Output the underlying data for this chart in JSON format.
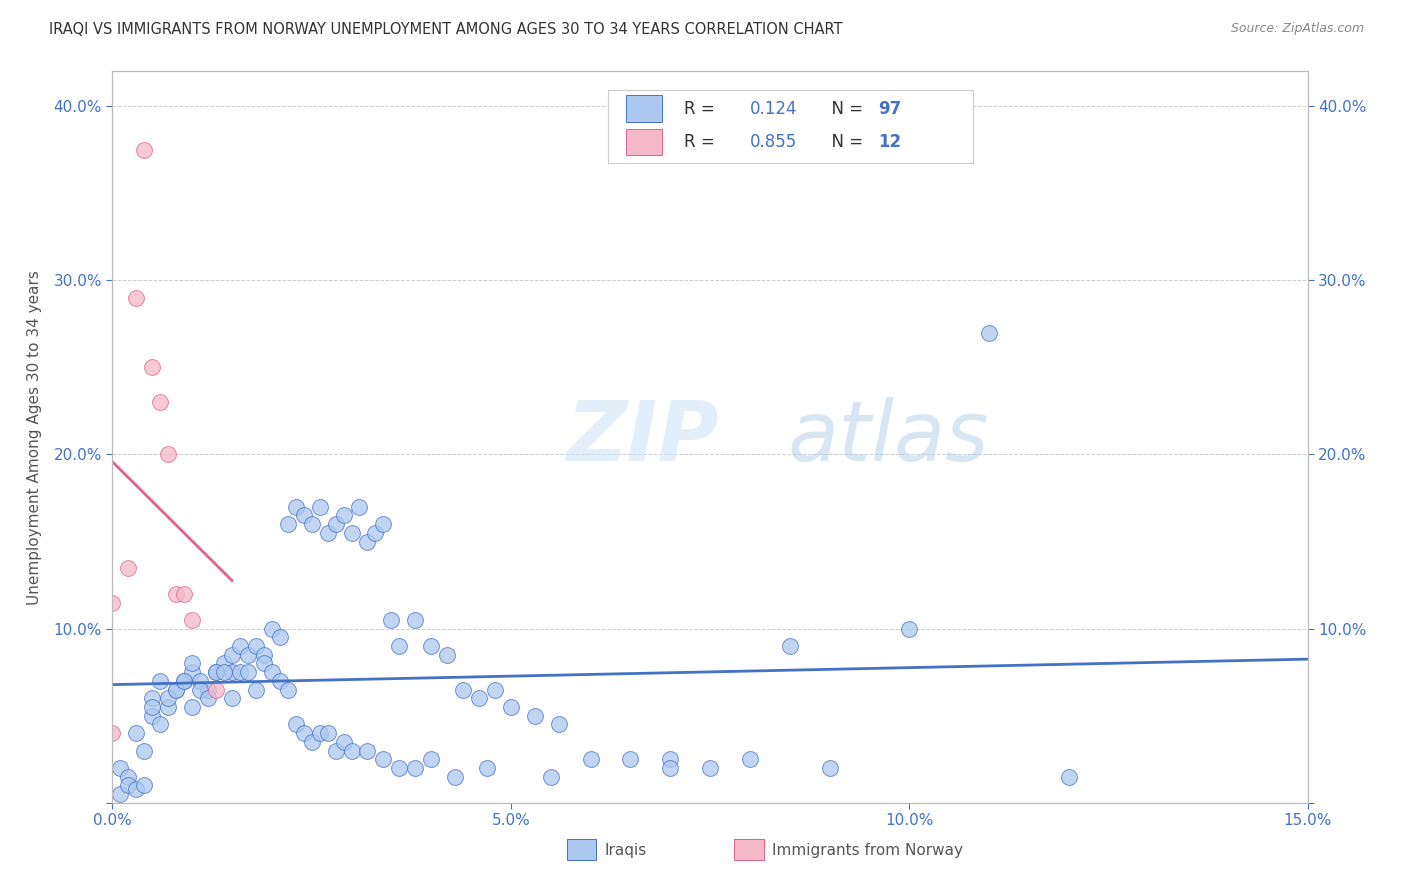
{
  "title": "IRAQI VS IMMIGRANTS FROM NORWAY UNEMPLOYMENT AMONG AGES 30 TO 34 YEARS CORRELATION CHART",
  "source": "Source: ZipAtlas.com",
  "ylabel": "Unemployment Among Ages 30 to 34 years",
  "xlim": [
    0,
    0.15
  ],
  "ylim": [
    0,
    0.42
  ],
  "xticks": [
    0.0,
    0.05,
    0.1,
    0.15
  ],
  "yticks": [
    0.0,
    0.1,
    0.2,
    0.3,
    0.4
  ],
  "xtick_labels": [
    "0.0%",
    "5.0%",
    "10.0%",
    "15.0%"
  ],
  "ytick_labels": [
    "",
    "10.0%",
    "20.0%",
    "30.0%",
    "40.0%"
  ],
  "legend_label1": "Iraqis",
  "legend_label2": "Immigrants from Norway",
  "R1": 0.124,
  "N1": 97,
  "R2": 0.855,
  "N2": 12,
  "color_blue": "#adc8f0",
  "color_pink": "#f5b8c8",
  "line_blue": "#4472c4",
  "line_pink": "#e06090",
  "watermark_zip": "ZIP",
  "watermark_atlas": "atlas",
  "title_color": "#333333",
  "axis_color": "#4472c4",
  "blue_scatter_x": [
    0.001,
    0.002,
    0.003,
    0.004,
    0.005,
    0.005,
    0.006,
    0.007,
    0.008,
    0.009,
    0.01,
    0.01,
    0.011,
    0.012,
    0.013,
    0.014,
    0.015,
    0.015,
    0.016,
    0.017,
    0.018,
    0.019,
    0.02,
    0.021,
    0.022,
    0.023,
    0.024,
    0.025,
    0.026,
    0.027,
    0.028,
    0.029,
    0.03,
    0.031,
    0.032,
    0.033,
    0.034,
    0.035,
    0.036,
    0.038,
    0.04,
    0.042,
    0.044,
    0.046,
    0.048,
    0.05,
    0.053,
    0.056,
    0.06,
    0.065,
    0.07,
    0.075,
    0.08,
    0.09,
    0.1,
    0.11,
    0.12,
    0.001,
    0.002,
    0.003,
    0.004,
    0.005,
    0.006,
    0.007,
    0.008,
    0.009,
    0.01,
    0.011,
    0.012,
    0.013,
    0.014,
    0.015,
    0.016,
    0.017,
    0.018,
    0.019,
    0.02,
    0.021,
    0.022,
    0.023,
    0.024,
    0.025,
    0.026,
    0.027,
    0.028,
    0.029,
    0.03,
    0.032,
    0.034,
    0.036,
    0.038,
    0.04,
    0.043,
    0.047,
    0.055,
    0.07,
    0.085
  ],
  "blue_scatter_y": [
    0.02,
    0.015,
    0.04,
    0.03,
    0.05,
    0.06,
    0.045,
    0.055,
    0.065,
    0.07,
    0.075,
    0.08,
    0.07,
    0.065,
    0.075,
    0.08,
    0.075,
    0.085,
    0.09,
    0.085,
    0.09,
    0.085,
    0.1,
    0.095,
    0.16,
    0.17,
    0.165,
    0.16,
    0.17,
    0.155,
    0.16,
    0.165,
    0.155,
    0.17,
    0.15,
    0.155,
    0.16,
    0.105,
    0.09,
    0.105,
    0.09,
    0.085,
    0.065,
    0.06,
    0.065,
    0.055,
    0.05,
    0.045,
    0.025,
    0.025,
    0.025,
    0.02,
    0.025,
    0.02,
    0.1,
    0.27,
    0.015,
    0.005,
    0.01,
    0.008,
    0.01,
    0.055,
    0.07,
    0.06,
    0.065,
    0.07,
    0.055,
    0.065,
    0.06,
    0.075,
    0.075,
    0.06,
    0.075,
    0.075,
    0.065,
    0.08,
    0.075,
    0.07,
    0.065,
    0.045,
    0.04,
    0.035,
    0.04,
    0.04,
    0.03,
    0.035,
    0.03,
    0.03,
    0.025,
    0.02,
    0.02,
    0.025,
    0.015,
    0.02,
    0.015,
    0.02,
    0.09
  ],
  "pink_scatter_x": [
    0.0,
    0.0,
    0.002,
    0.003,
    0.004,
    0.005,
    0.006,
    0.007,
    0.008,
    0.009,
    0.01,
    0.013
  ],
  "pink_scatter_y": [
    0.04,
    0.115,
    0.135,
    0.29,
    0.375,
    0.25,
    0.23,
    0.2,
    0.12,
    0.12,
    0.105,
    0.065
  ]
}
